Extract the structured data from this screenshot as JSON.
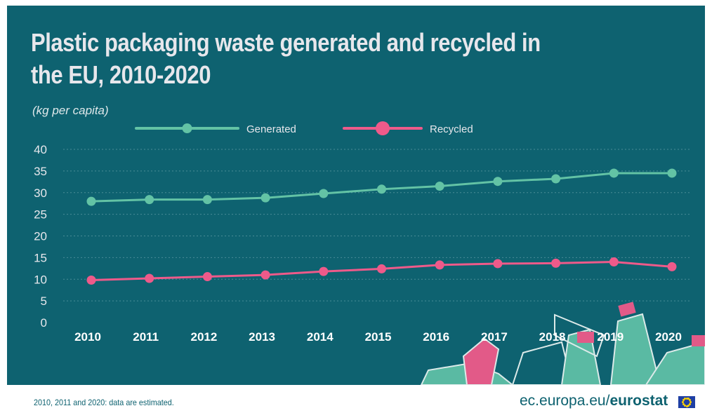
{
  "title": "Plastic packaging waste generated and recycled in the EU, 2010-2020",
  "unit": "(kg per capita)",
  "footnote": "2010, 2011 and 2020: data are estimated.",
  "source": {
    "domain": "ec.europa.eu/",
    "brand": "eurostat"
  },
  "colors": {
    "background": "#0e6270",
    "generated": "#63c3a5",
    "recycled": "#ee5a8a",
    "text": "#e7e7ec",
    "grid": "#4a8c96"
  },
  "chart_data": {
    "type": "line",
    "title": "Plastic packaging waste generated and recycled in the EU, 2010-2020",
    "ylabel": "(kg per capita)",
    "xlabel": "",
    "categories": [
      "2010",
      "2011",
      "2012",
      "2013",
      "2014",
      "2015",
      "2016",
      "2017",
      "2018",
      "2019",
      "2020"
    ],
    "yticks": [
      0,
      5,
      10,
      15,
      20,
      25,
      30,
      35,
      40
    ],
    "ylim": [
      0,
      40
    ],
    "grid": true,
    "legend": "top",
    "series": [
      {
        "name": "Generated",
        "color": "#63c3a5",
        "values": [
          28.0,
          28.4,
          28.4,
          28.8,
          29.8,
          30.8,
          31.5,
          32.6,
          33.2,
          34.5,
          34.5
        ]
      },
      {
        "name": "Recycled",
        "color": "#ee5a8a",
        "values": [
          9.8,
          10.2,
          10.6,
          11.0,
          11.8,
          12.4,
          13.3,
          13.6,
          13.7,
          14.0,
          12.9
        ]
      }
    ]
  }
}
